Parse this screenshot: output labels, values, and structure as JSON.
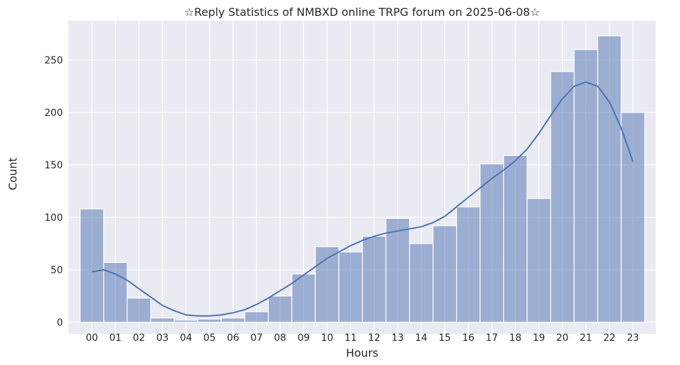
{
  "chart_data": {
    "type": "bar",
    "title": "☆Reply Statistics of NMBXD online TRPG forum on 2025-06-08☆",
    "xlabel": "Hours",
    "ylabel": "Count",
    "categories": [
      "00",
      "01",
      "02",
      "03",
      "04",
      "05",
      "06",
      "07",
      "08",
      "09",
      "10",
      "11",
      "12",
      "13",
      "14",
      "15",
      "16",
      "17",
      "18",
      "19",
      "20",
      "21",
      "22",
      "23"
    ],
    "values": [
      108,
      57,
      23,
      4,
      2,
      3,
      4,
      10,
      25,
      46,
      72,
      67,
      82,
      99,
      75,
      92,
      110,
      151,
      159,
      118,
      239,
      260,
      273,
      200
    ],
    "kde": {
      "x": [
        0,
        0.5,
        1,
        1.5,
        2,
        2.5,
        3,
        3.5,
        4,
        4.5,
        5,
        5.5,
        6,
        6.5,
        7,
        7.5,
        8,
        8.5,
        9,
        9.5,
        10,
        10.5,
        11,
        11.5,
        12,
        12.5,
        13,
        13.5,
        14,
        14.5,
        15,
        15.5,
        16,
        16.5,
        17,
        17.5,
        18,
        18.5,
        19,
        19.5,
        20,
        20.5,
        21,
        21.5,
        22,
        22.5,
        23
      ],
      "y": [
        48,
        50,
        46,
        40,
        32,
        24,
        16,
        11,
        7,
        6,
        6,
        7,
        9,
        12,
        17,
        23,
        30,
        37,
        45,
        53,
        61,
        67,
        73,
        78,
        82,
        85,
        87,
        89,
        91,
        95,
        101,
        110,
        119,
        128,
        137,
        145,
        154,
        165,
        180,
        197,
        213,
        225,
        229,
        225,
        210,
        185,
        153
      ]
    },
    "yticks": [
      0,
      50,
      100,
      150,
      200,
      250
    ],
    "ylim": [
      -11,
      287
    ],
    "xlim": [
      -1,
      24
    ],
    "grid": true,
    "colors": {
      "bar": "#4c72b0",
      "background": "#eaeaf2",
      "grid": "#ffffff"
    }
  }
}
